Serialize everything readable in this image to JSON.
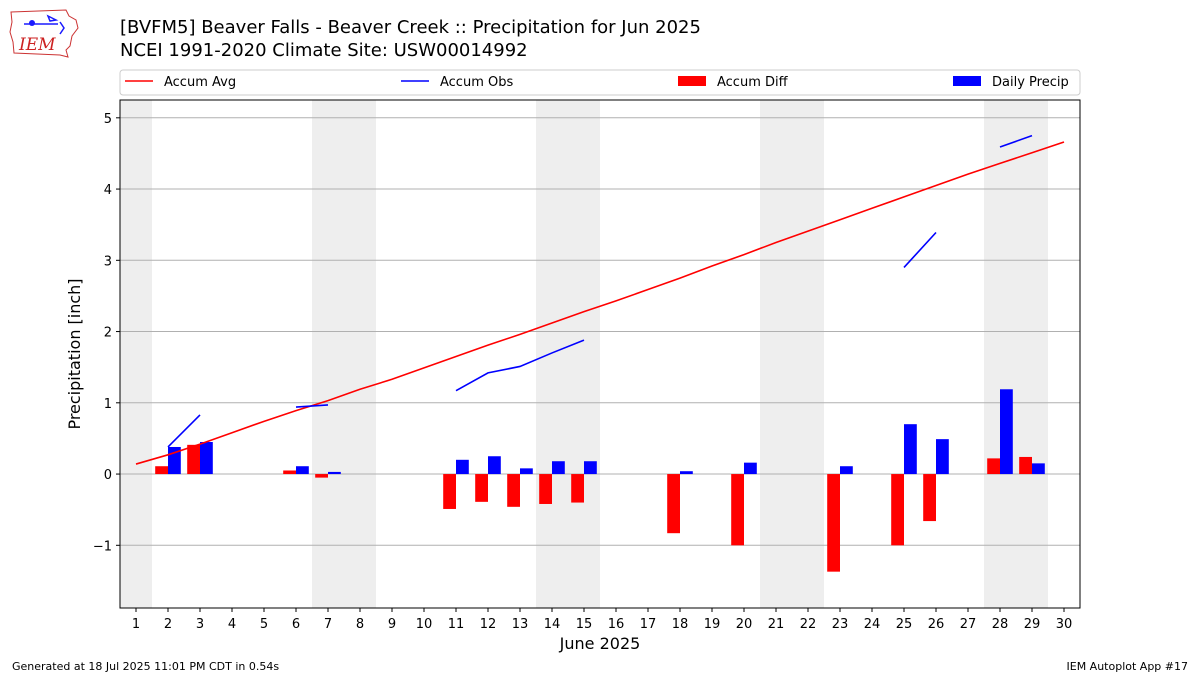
{
  "header": {
    "title_line1": "[BVFM5] Beaver Falls - Beaver Creek :: Precipitation for Jun 2025",
    "title_line2": "NCEI 1991-2020 Climate Site: USW00014992",
    "logo_text": "IEM"
  },
  "footer": {
    "left": "Generated at 18 Jul 2025 11:01 PM CDT in 0.54s",
    "right": "IEM Autoplot App #17"
  },
  "chart_data": {
    "type": "bar",
    "xlabel": "June 2025",
    "ylabel": "Precipitation [inch]",
    "xlim": [
      0.5,
      30.5
    ],
    "ylim": [
      -1.88,
      5.25
    ],
    "x_ticks": [
      1,
      2,
      3,
      4,
      5,
      6,
      7,
      8,
      9,
      10,
      11,
      12,
      13,
      14,
      15,
      16,
      17,
      18,
      19,
      20,
      21,
      22,
      23,
      24,
      25,
      26,
      27,
      28,
      29,
      30
    ],
    "y_ticks": [
      -1,
      0,
      1,
      2,
      3,
      4,
      5
    ],
    "grid": "horizontal",
    "legend_position": "top",
    "weekend_bands": [
      [
        0.5,
        1.5
      ],
      [
        6.5,
        8.5
      ],
      [
        13.5,
        15.5
      ],
      [
        20.5,
        22.5
      ],
      [
        27.5,
        29.5
      ]
    ],
    "colors": {
      "accum_avg": "#ff0000",
      "accum_obs": "#0000ff",
      "accum_diff": "#ff0000",
      "daily_precip": "#0000ff",
      "band": "#eeeeee",
      "grid": "#b0b0b0"
    },
    "legend": [
      {
        "key": "accum_avg",
        "label": "Accum Avg",
        "marker": "line"
      },
      {
        "key": "accum_obs",
        "label": "Accum Obs",
        "marker": "line"
      },
      {
        "key": "accum_diff",
        "label": "Accum Diff",
        "marker": "bar"
      },
      {
        "key": "daily_precip",
        "label": "Daily Precip",
        "marker": "bar"
      }
    ],
    "series": [
      {
        "name": "Accum Avg",
        "kind": "line",
        "x": [
          1,
          2,
          3,
          4,
          5,
          6,
          7,
          8,
          9,
          10,
          11,
          12,
          13,
          14,
          15,
          16,
          17,
          18,
          19,
          20,
          21,
          22,
          23,
          24,
          25,
          26,
          27,
          28,
          29,
          30
        ],
        "values": [
          0.14,
          0.27,
          0.42,
          0.58,
          0.74,
          0.89,
          1.03,
          1.19,
          1.33,
          1.49,
          1.65,
          1.81,
          1.96,
          2.12,
          2.28,
          2.43,
          2.59,
          2.75,
          2.92,
          3.08,
          3.25,
          3.41,
          3.57,
          3.73,
          3.89,
          4.05,
          4.21,
          4.36,
          4.51,
          4.66
        ]
      },
      {
        "name": "Accum Obs",
        "kind": "line",
        "segments": [
          {
            "x": [
              2,
              3
            ],
            "values": [
              0.38,
              0.83
            ]
          },
          {
            "x": [
              6,
              7
            ],
            "values": [
              0.94,
              0.97
            ]
          },
          {
            "x": [
              11,
              12,
              13,
              14,
              15
            ],
            "values": [
              1.17,
              1.42,
              1.51,
              1.7,
              1.88
            ]
          },
          {
            "x": [
              25,
              26
            ],
            "values": [
              2.9,
              3.39
            ]
          },
          {
            "x": [
              28,
              29
            ],
            "values": [
              4.59,
              4.75
            ]
          }
        ]
      },
      {
        "name": "Accum Diff",
        "kind": "bar",
        "x": [
          2,
          3,
          6,
          7,
          11,
          12,
          13,
          14,
          15,
          18,
          20,
          23,
          25,
          26,
          28,
          29
        ],
        "values": [
          0.11,
          0.41,
          0.05,
          -0.05,
          -0.49,
          -0.39,
          -0.46,
          -0.42,
          -0.4,
          -0.83,
          -1.0,
          -1.37,
          -1.0,
          -0.66,
          0.22,
          0.24
        ]
      },
      {
        "name": "Daily Precip",
        "kind": "bar",
        "x": [
          2,
          3,
          6,
          7,
          11,
          12,
          13,
          14,
          15,
          18,
          20,
          23,
          25,
          26,
          28,
          29
        ],
        "values": [
          0.38,
          0.45,
          0.11,
          0.03,
          0.2,
          0.25,
          0.08,
          0.18,
          0.18,
          0.04,
          0.16,
          0.11,
          0.7,
          0.49,
          1.19,
          0.15
        ]
      }
    ]
  }
}
